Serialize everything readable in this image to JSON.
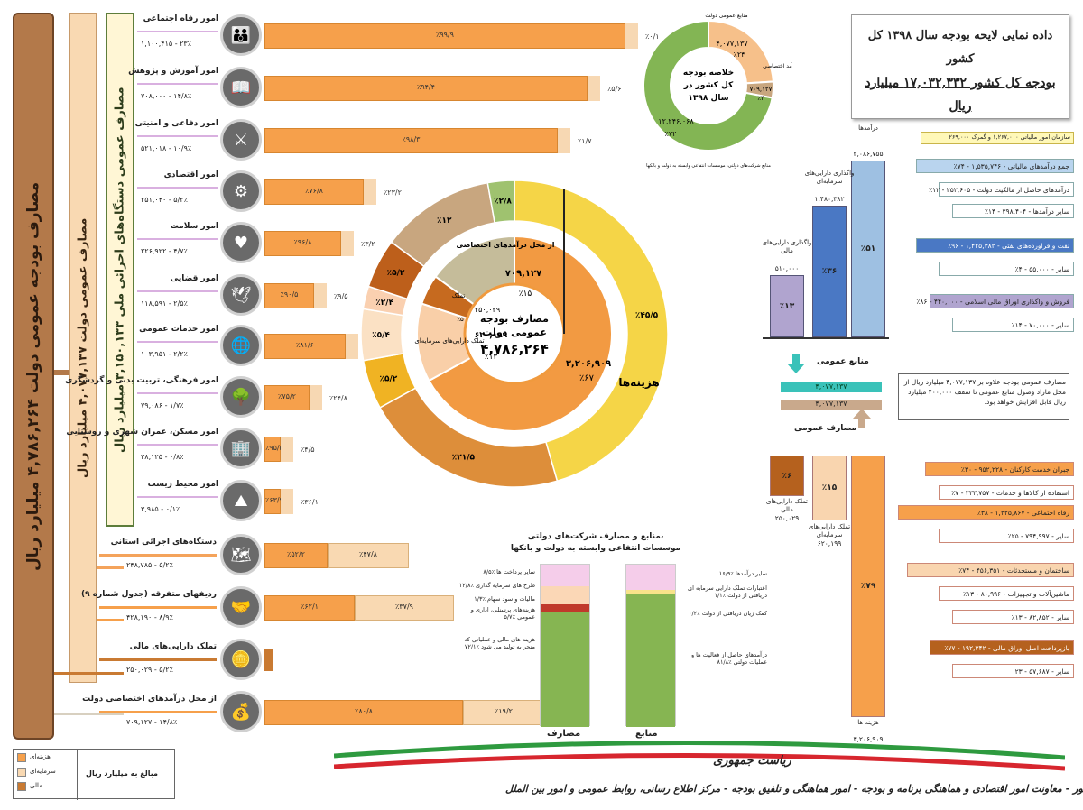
{
  "header": {
    "line1": "داده نمایی لایحه بودجه سال ۱۳۹۸ کل کشور",
    "line2": "بودجه کل کشور ۱۷,۰۳۲,۳۳۲ میلیارد ریال"
  },
  "left_columns": {
    "col1": "مصارف بودجه عمومی دولت ۴,۷۸۶,۲۶۴ میلیارد ریال",
    "col2": "مصارف عمومی دولت ۴,۰۷۷,۱۳۷ میلیارد ریال",
    "col3": "مصارف عمومی دستگاه‌های اجرائی ملی ۳,۱۵۰,۱۳۳ میلیارد ریال"
  },
  "sectors": [
    {
      "title": "امور رفاه اجتماعی",
      "sub": "۱,۱۰۰,۴۱۵ - ۲۳٪",
      "bar": "٪۹۹/۹",
      "end": "٪۰/۱",
      "icon": "people-icon",
      "glyph": "👪"
    },
    {
      "title": "امور آموزش و پژوهش",
      "sub": "۷۰۸,۰۰۰ - ۱۴/۸٪",
      "bar": "٪۹۴/۴",
      "end": "٪۵/۶",
      "icon": "book-icon",
      "glyph": "📖"
    },
    {
      "title": "امور دفاعی و امنیتی",
      "sub": "۵۲۱,۰۱۸ - ۱۰/۹٪",
      "bar": "٪۹۸/۳",
      "end": "٪۱/۷",
      "icon": "soldier-icon",
      "glyph": "⚔"
    },
    {
      "title": "امور اقتصادی",
      "sub": "۲۵۱,۰۴۰ - ۵/۲٪",
      "bar": "٪۷۶/۸",
      "end": "٪۲۳/۲",
      "icon": "gears-icon",
      "glyph": "⚙"
    },
    {
      "title": "امور سلامت",
      "sub": "۲۲۶,۹۲۲ - ۴/۷٪",
      "bar": "٪۹۶/۸",
      "end": "٪۳/۲",
      "icon": "heartbeat-icon",
      "glyph": "♥"
    },
    {
      "title": "امور قضایی",
      "sub": "۱۱۸,۵۹۱ - ۲/۵٪",
      "bar": "٪۹۰/۵",
      "end": "٪۹/۵",
      "icon": "dove-icon",
      "glyph": "🕊"
    },
    {
      "title": "امور خدمات عمومی",
      "sub": "۱۰۳,۹۵۱ - ۲/۲٪",
      "bar": "٪۸۱/۶",
      "end": "٪۱۸/۴",
      "icon": "globe-icon",
      "glyph": "🌐"
    },
    {
      "title": "امور فرهنگی، تربیت بدنی و گردشگری",
      "sub": "۷۹,۰۸۶ - ۱/۷٪",
      "bar": "٪۷۵/۲",
      "end": "٪۲۴/۸",
      "icon": "tree-icon",
      "glyph": "🌳"
    },
    {
      "title": "امور مسکن، عمران شهری و روستایی",
      "sub": "۳۸,۱۲۵ - ۰/۸٪",
      "bar": "٪۹۵/۵",
      "end": "٪۴/۵",
      "icon": "buildings-icon",
      "glyph": "🏢"
    },
    {
      "title": "امور محیط زیست",
      "sub": "۳,۹۸۵ - ۰/۱٪",
      "bar": "٪۶۳/۹",
      "end": "٪۳۶/۱",
      "icon": "landscape-icon",
      "glyph": "⛰"
    }
  ],
  "lower_rows": [
    {
      "title": "دستگاه‌های اجرائی استانی",
      "sub": "۲۴۸,۷۸۵ - ۵/۲٪",
      "bar": "٪۵۲/۲",
      "end": "٪۴۷/۸",
      "icon": "map-icon",
      "glyph": "🗺"
    },
    {
      "title": "ردیفهای متفرقه (جدول شماره ۹)",
      "sub": "۴۲۸,۱۹۰ - ۸/۹٪",
      "bar": "٪۶۲/۱",
      "end": "٪۳۷/۹",
      "icon": "hands-icon",
      "glyph": "🤝"
    },
    {
      "title": "تملک دارایی‌های مالی",
      "sub": "۲۵۰,۰۲۹ - ۵/۲٪",
      "bar": "",
      "end": "",
      "icon": "coins-icon",
      "glyph": "🪙"
    },
    {
      "title": "از محل درآمدهای اختصاصی دولت",
      "sub": "۷۰۹,۱۲۷ - ۱۴/۸٪",
      "bar": "٪۸۰/۸",
      "end": "٪۱۹/۲",
      "icon": "money-hand-icon",
      "glyph": "💰"
    }
  ],
  "legend": {
    "items": [
      "هزینه‌ای",
      "سرمایه‌ای",
      "مالی"
    ],
    "unit": "مبالغ به میلیارد ریال"
  },
  "donut": {
    "center": [
      "مصارف بودجه",
      "عمومی دولت",
      "۴,۷۸۶,۲۶۴"
    ],
    "inner_big": [
      "۳,۲۰۶,۹۰۹",
      "٪۶۷"
    ],
    "inner_label": "هزینه‌ها",
    "inner_cap": [
      "۶۲۰,۱۹۹",
      "٪۱۳"
    ],
    "inner_cap_label": "تملک دارایی‌های سرمایه‌ای",
    "inner_fin": "۲۵۰,۰۲۹",
    "inner_fin_pct": "٪۵",
    "inner_fin_label": "تملک",
    "inner_spec": [
      "۷۰۹,۱۲۷",
      "٪۱۵"
    ],
    "inner_spec_label": "از محل درآمدهای اختصاصی",
    "outer": [
      {
        "label": "٪۴۵/۵",
        "color": "#f5d547"
      },
      {
        "label": "٪۲۱/۵",
        "color": "#dd8e3a"
      },
      {
        "label": "٪۵/۲",
        "color": "#f0b323"
      },
      {
        "label": "٪۵/۴",
        "color": "#fbe1c4"
      },
      {
        "label": "٪۲/۴",
        "color": "#fad0b0"
      },
      {
        "label": "٪۵/۲",
        "color": "#bd5f1b"
      },
      {
        "label": "٪۱۲",
        "color": "#c8a67f"
      },
      {
        "label": "٪۲/۸",
        "color": "#9fc26f"
      }
    ]
  },
  "small_donut": {
    "title": [
      "خلاصه بودجه",
      "کل کشور در",
      "سال ۱۳۹۸"
    ],
    "seg1": [
      "۴,۰۷۷,۱۳۷",
      "٪۲۴"
    ],
    "seg2": [
      "۷۰۹,۱۲۷",
      "٪۴"
    ],
    "seg3": [
      "۱۲,۲۴۶,۰۶۸",
      "٪۷۲"
    ],
    "label_a": "منابع عمومی دولت",
    "label_b": "منابع شرکت‌های دولتی، موسسات انتفاعی وابسته به دولت و بانکها",
    "label_c": "درآمد اختصاصی"
  },
  "resources": {
    "title": "منابع عمومی",
    "bars": [
      {
        "label": "درآمدها",
        "value": "۲,۰۸۶,۷۵۵",
        "pct": "٪۵۱"
      },
      {
        "label": "واگذاری دارایی‌های سرمایه‌ای",
        "value": "۱,۴۸۰,۳۸۲",
        "pct": "٪۳۶"
      },
      {
        "label": "واگذاری دارایی‌های مالی",
        "value": "۵۱۰,۰۰۰",
        "pct": "٪۱۳"
      }
    ],
    "tax_note": "سازمان امور مالیاتی ۱,۲۶۷,۰۰۰ و گمرک ۲۶۹,۰۰۰",
    "blue_items": [
      "جمع درآمدهای مالیاتی - ۱,۵۳۵,۷۴۶ - ۷۴٪",
      "درآمدهای حاصل از مالکیت دولت - ۲۵۲,۶۰۵ - ۱۲٪",
      "سایر درآمدها - ۲۹۸,۴۰۴ - ۱۴٪",
      "نفت و فراورده‌های نفتی - ۱,۴۲۵,۳۸۲ - ۹۶٪",
      "سایر - ۵۵,۰۰۰ - ۴٪",
      "فروش و واگذاری اوراق مالی اسلامی - ۴۴۰,۰۰۰ - ۸۶٪",
      "سایر - ۷۰,۰۰۰ - ۱۴٪"
    ],
    "balance1": "۴,۰۷۷,۱۳۷",
    "balance2": "۴,۰۷۷,۱۳۷",
    "expense_title": "مصارف عمومی",
    "note": "مصارف عمومی بودجه علاوه بر ۴,۰۷۷,۱۳۷ میلیارد ریال از محل مازاد وصول منابع عمومی تا سقف ۴۰۰,۰۰۰ میلیارد ریال قابل افزایش خواهد بود."
  },
  "expenses": {
    "bars": [
      {
        "label": "تملک دارایی‌های مالی",
        "value": "۲۵۰,۰۲۹",
        "pct": "٪۶"
      },
      {
        "label": "تملک دارایی‌های سرمایه‌ای",
        "value": "۶۲۰,۱۹۹",
        "pct": "٪۱۵"
      },
      {
        "label": "هزینه ها",
        "value": "۳,۲۰۶,۹۰۹",
        "pct": "٪۷۹"
      }
    ],
    "orange_items": [
      "جبران خدمت کارکنان - ۹۵۲,۲۲۸ - ۳۰٪",
      "استفاده از کالاها و خدمات - ۲۳۳,۷۵۷ - ۷٪",
      "رفاه اجتماعی - ۱,۲۲۵,۸۶۷ - ۳۸٪",
      "سایر - ۷۹۴,۹۹۷ - ۲۵٪",
      "ساختمان و مستحدثات - ۴۵۶,۳۵۱ - ۷۴٪",
      "ماشین‌آلات و تجهیزات - ۸۰,۹۹۶ - ۱۳٪",
      "سایر - ۸۲,۸۵۲ - ۱۳٪",
      "بازپرداخت اصل اوراق مالی - ۱۹۲,۳۴۲ - ۷۷٪",
      "سایر - ۵۷,۶۸۷ - ۲۳"
    ]
  },
  "companies": {
    "title": "منابع و مصارف شرکت‌های دولتی،",
    "title2": "موسسات انتفاعی وابسته به دولت و بانکها",
    "left_col": "مصارف",
    "right_col": "منابع",
    "left_labels": [
      "سایر پرداخت ها ٪۸/۵",
      "طرح های سرمایه گذاری ٪۱۲/۸",
      "مالیات و سود سهام ٪۱/۳",
      "هزینه‌های پرسنلی، اداری و عمومی ٪۵/۷",
      "هزینه های مالی و عملیاتی که منجر به تولید می شود ٪۷۲/۱"
    ],
    "right_labels": [
      "سایر درآمدها ٪۱۶/۹",
      "اعتبارات تملک دارایی سرمایه ای دریافتی از دولت ٪۱/۱",
      "کمک زیان دریافتی از دولت ٪۰/۲",
      "درآمدهای حاصل از فعالیت ها و عملیات دولتی ٪۸۱/۸"
    ]
  },
  "footer": {
    "line1": "ریاست جمهوری",
    "line2": "سازمان برنامه و بودجه کشور - معاونت امور اقتصادی و هماهنگی برنامه و بودجه - امور هماهنگی و تلفیق بودجه - مرکز اطلاع رسانی، روابط عمومی و امور بین الملل"
  }
}
